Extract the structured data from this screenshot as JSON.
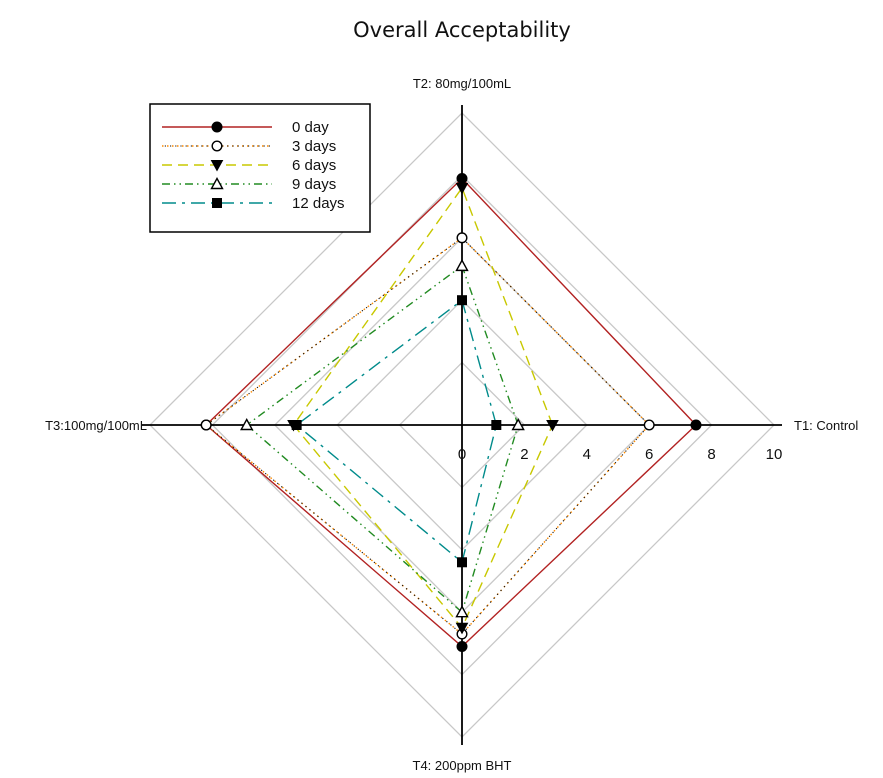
{
  "chart_data": {
    "type": "radar",
    "title": "Overall Acceptability",
    "axes": [
      "T1: Control",
      "T2: 80mg/100mL",
      "T3:100mg/100mL",
      "T4: 200ppm BHT"
    ],
    "rlim": [
      0,
      10
    ],
    "ticks": [
      "0",
      "2",
      "4",
      "6",
      "8",
      "10"
    ],
    "grid": true,
    "legend_position": "top-left",
    "series": [
      {
        "name": "0 day",
        "values": [
          7.5,
          7.9,
          8.2,
          7.1
        ],
        "color": "#b22222",
        "dash": "solid",
        "marker": "circle-filled"
      },
      {
        "name": "3 days",
        "values": [
          6.0,
          6.0,
          8.2,
          6.7
        ],
        "color": "#ff8c00",
        "dash": "dotted",
        "marker": "circle-open"
      },
      {
        "name": "6 days",
        "values": [
          2.9,
          7.6,
          5.4,
          6.5
        ],
        "color": "#c8c800",
        "dash": "dashed",
        "marker": "triangle-down-filled"
      },
      {
        "name": "9 days",
        "values": [
          1.8,
          5.1,
          6.9,
          6.0
        ],
        "color": "#228b22",
        "dash": "dash-dot-dot",
        "marker": "triangle-up-open"
      },
      {
        "name": "12 days",
        "values": [
          1.1,
          4.0,
          5.3,
          4.4
        ],
        "color": "#008b8b",
        "dash": "long-dash-dot",
        "marker": "square-filled"
      }
    ],
    "overlay_color": "#111111"
  }
}
